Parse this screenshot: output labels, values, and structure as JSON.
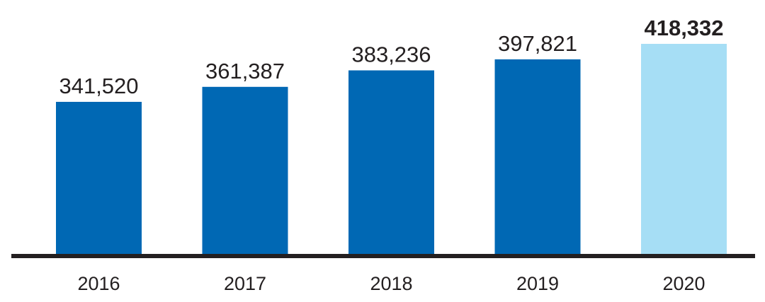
{
  "chart_data": {
    "type": "bar",
    "title": "",
    "xlabel": "",
    "ylabel": "",
    "categories": [
      "2016",
      "2017",
      "2018",
      "2019",
      "2020"
    ],
    "values": [
      341520,
      361387,
      383236,
      397821,
      418332
    ],
    "value_labels": [
      "341,520",
      "361,387",
      "383,236",
      "397,821",
      "418,332"
    ],
    "highlight_index": 4,
    "ylim": [
      0,
      418332
    ],
    "grid": false,
    "colors": {
      "bar": "#0068b4",
      "highlight_bar": "#a6def5",
      "baseline": "#231f20",
      "text": "#231f20"
    }
  }
}
